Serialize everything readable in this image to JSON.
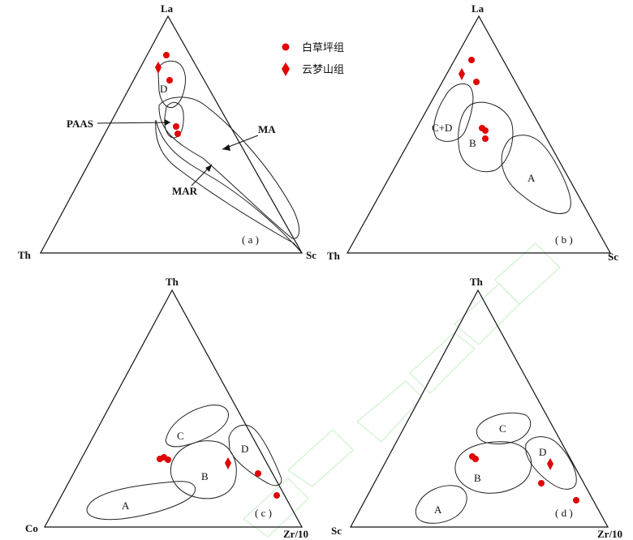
{
  "legend": {
    "baicaoping": "白草坪组",
    "yunmengshan": "云梦山组",
    "marker_color": "#e00000"
  },
  "panels": {
    "a": {
      "caption": "( a )",
      "vertex_top": "La",
      "vertex_left": "Th",
      "vertex_right": "Sc",
      "field_D": "D",
      "label_PAAS": "PAAS",
      "label_MA": "MA",
      "label_MAR": "MAR"
    },
    "b": {
      "caption": "( b )",
      "vertex_top": "La",
      "vertex_left": "Th",
      "vertex_right": "Sc",
      "field_CD": "C+D",
      "field_B": "B",
      "field_A": "A"
    },
    "c": {
      "caption": "( c )",
      "vertex_top": "Th",
      "vertex_left": "Co",
      "vertex_right": "Zr/10",
      "field_A": "A",
      "field_B": "B",
      "field_C": "C",
      "field_D": "D"
    },
    "d": {
      "caption": "( d )",
      "vertex_top": "Th",
      "vertex_left": "Sc",
      "vertex_right": "Zr/10",
      "field_A": "A",
      "field_B": "B",
      "field_C": "C",
      "field_D": "D"
    }
  }
}
